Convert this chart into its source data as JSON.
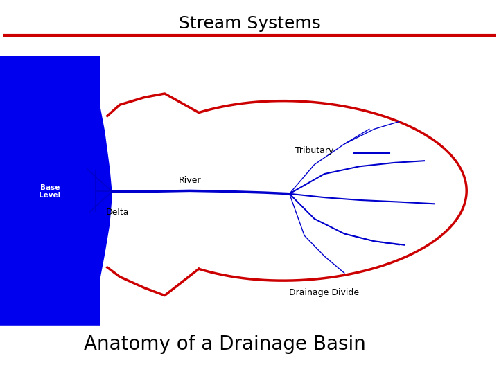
{
  "title": "Stream Systems",
  "subtitle": "Anatomy of a Drainage Basin",
  "title_color": "#000000",
  "subtitle_color": "#000000",
  "red_line_color": "#cc0000",
  "blue_color": "#0000cc",
  "water_color": "#0000ee",
  "bg_color": "#ffffff",
  "label_river": "River",
  "label_tributary": "Tributary",
  "label_delta": "Delta",
  "label_base": "Base\nLevel",
  "label_divide": "Drainage Divide",
  "title_fontsize": 18,
  "subtitle_fontsize": 20,
  "label_fontsize": 9
}
